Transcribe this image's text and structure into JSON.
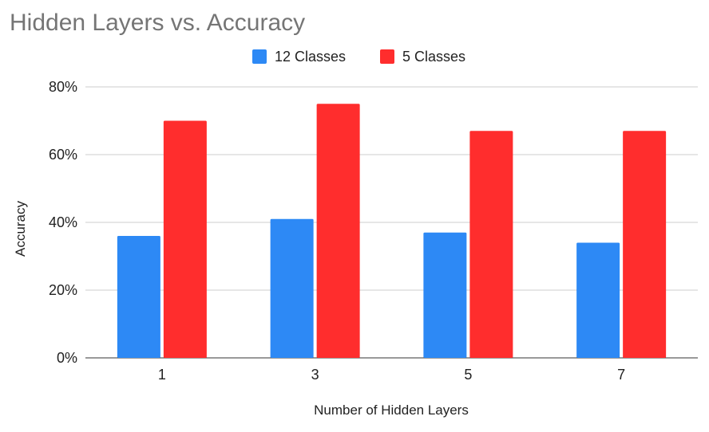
{
  "chart_data": {
    "type": "bar",
    "title": "Hidden Layers vs. Accuracy",
    "xlabel": "Number of Hidden Layers",
    "ylabel": "Accuracy",
    "categories": [
      "1",
      "3",
      "5",
      "7"
    ],
    "ylim": [
      0,
      0.8
    ],
    "yticks": [
      0,
      0.2,
      0.4,
      0.6,
      0.8
    ],
    "ytick_labels": [
      "0%",
      "20%",
      "40%",
      "60%",
      "80%"
    ],
    "grid": true,
    "legend_position": "top",
    "series": [
      {
        "name": "12 Classes",
        "color": "#2d89f5",
        "values": [
          0.36,
          0.41,
          0.37,
          0.34
        ]
      },
      {
        "name": "5 Classes",
        "color": "#ff2d2d",
        "values": [
          0.7,
          0.75,
          0.67,
          0.67
        ]
      }
    ]
  }
}
